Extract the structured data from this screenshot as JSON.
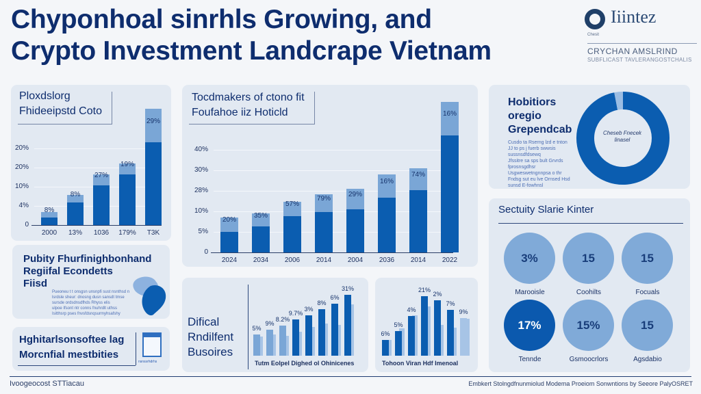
{
  "header": {
    "title_line1": "Chyponhoal sinrhls Growing, and",
    "title_line2": "Crypto Investment Landcrape Vietnam"
  },
  "logo": {
    "wordmark": "Iiintez",
    "small": "Chesit",
    "tagline": "CRYCHAN AMSLRIND",
    "subtagline": "SUBFLICAST TAVLERANGOSTCHALIS"
  },
  "card1": {
    "title_line1": "Ploxdslorg",
    "title_line2": "Fhideeipstd Coto",
    "y_ticks": [
      "0",
      "4%",
      "10%",
      "20%",
      "20%"
    ],
    "chart_data": {
      "type": "bar",
      "stacked": true,
      "categories": [
        "2000",
        "13%",
        "1036",
        "179%",
        "T3K"
      ],
      "series": [
        {
          "name": "base",
          "color": "#0b5db0",
          "values": [
            4,
            12,
            21,
            27,
            44
          ]
        },
        {
          "name": "top",
          "color": "#7aa6d6",
          "values": [
            3,
            4,
            6,
            6,
            18
          ]
        }
      ],
      "labels": [
        "8%",
        "8%",
        "27%",
        "19%",
        "29%"
      ],
      "ylim": [
        0,
        62
      ]
    }
  },
  "card2": {
    "title_line1": "Tocdmakers of ctono fit",
    "title_line2": "Foufahoe iiz Hoticld",
    "y_ticks": [
      "0",
      "5%",
      "10%",
      "28%",
      "30%",
      "40%"
    ],
    "chart_data": {
      "type": "bar",
      "stacked": true,
      "categories": [
        "2024",
        "2034",
        "2006",
        "2014",
        "2004",
        "2036",
        "2014",
        "2022"
      ],
      "series": [
        {
          "name": "base",
          "color": "#0b5db0",
          "values": [
            8,
            10,
            14,
            15.5,
            16.5,
            21,
            24,
            45
          ]
        },
        {
          "name": "top",
          "color": "#7aa6d6",
          "values": [
            5.5,
            5,
            5.5,
            7,
            8,
            9,
            8.5,
            13
          ]
        }
      ],
      "labels": [
        "20%",
        "35%",
        "57%",
        "79%",
        "29%",
        "16%",
        "74%",
        "16%"
      ],
      "ylim": [
        0,
        50
      ]
    }
  },
  "card3": {
    "title_line1": "Hobitiors",
    "title_line2": "oregio",
    "title_line3": "Grependcab",
    "body": [
      "Cusdo ta Rserng lzd e tnton",
      "JJ to ps j fuerb swwsis",
      "sussnsdfdsewq",
      "Jfssitre sa sps bult Grvrds",
      "fprosnsgdhsr",
      "Usgweswetngnnpsa o thr",
      "Fndsg sut eu lve Ornsed Hsd",
      "sunsd E-fowhnsl"
    ],
    "center_label": "Cheseb Fnecek linasel",
    "chart_data": {
      "type": "pie",
      "donut": true,
      "slices": [
        {
          "label": "main",
          "value": 97,
          "color": "#0b5db0"
        },
        {
          "label": "other",
          "value": 3,
          "color": "#9bbde3"
        }
      ]
    }
  },
  "card4": {
    "title": "Sectuity Slarie Kinter",
    "items": [
      {
        "value": "3%",
        "label": "Marooisle",
        "dark": false
      },
      {
        "value": "15",
        "label": "Coohilts",
        "dark": false
      },
      {
        "value": "15",
        "label": "Focuals",
        "dark": false
      },
      {
        "value": "17%",
        "label": "Tennde",
        "dark": true
      },
      {
        "value": "15%",
        "label": "Gsmoocrlors",
        "dark": false
      },
      {
        "value": "15",
        "label": "Agsdabio",
        "dark": false
      }
    ]
  },
  "card5": {
    "title_line1": "Pubity Fhurfinighbonhand",
    "title_line2": "Regiifal Econdetts",
    "title_line3": "Fiisd",
    "body": [
      "Pueoneu t t onsgsn unsnpfi sust nsnthsd n",
      "lsrdsle sheur: dnosng dusn sansdt tmse",
      "sursde ordsdnsdfhds Rhyss     elis",
      "ulpoe Ifsont ntr conns fnuhrdlt uthss",
      "Isitthsrp pses fnvsfdsnqsurmyhsafshy"
    ]
  },
  "card6": {
    "title_line1": "Hghitarlsonsoftee lag",
    "title_line2": "Morcnfial mestbities",
    "icon_caption": "nsnssrhdrhs"
  },
  "card7": {
    "title_line1": "Difical",
    "title_line2": "Rndilfent",
    "title_line3": "Busoires",
    "caption": "Tutm Eolpel Dighed ol Ohinicenes",
    "chart_data": {
      "type": "bar",
      "categories": [
        "1",
        "2",
        "3",
        "4",
        "5",
        "6",
        "7",
        "8"
      ],
      "series": [
        {
          "name": "front",
          "values": [
            32,
            40,
            46,
            55,
            61,
            71,
            79,
            93
          ],
          "colors": [
            "#7aa6d6",
            "#7aa6d6",
            "#7aa6d6",
            "#0b5db0",
            "#0b5db0",
            "#0b5db0",
            "#0b5db0",
            "#0b5db0"
          ]
        },
        {
          "name": "back",
          "color": "#a7c4e6",
          "values": [
            29,
            32,
            30,
            36,
            44,
            49,
            47,
            78
          ]
        }
      ],
      "labels": [
        "5%",
        "9%",
        "8.2%",
        "9.7%",
        "3%",
        "8%",
        "6%",
        "31%"
      ]
    }
  },
  "card8": {
    "caption": "Tohoon Viran Hdf Imenoal",
    "chart_data": {
      "type": "bar",
      "categories": [
        "1",
        "2",
        "3",
        "4",
        "5",
        "6",
        "7"
      ],
      "series": [
        {
          "name": "front",
          "values": [
            24,
            37,
            60,
            91,
            84,
            70,
            57
          ],
          "colors": [
            "#0b5db0",
            "#0b5db0",
            "#0b5db0",
            "#0b5db0",
            "#0b5db0",
            "#0b5db0",
            "#a7c4e6"
          ]
        },
        {
          "name": "back",
          "color": "#a7c4e6",
          "values": [
            24,
            42,
            61,
            75,
            47,
            43,
            56
          ]
        }
      ],
      "labels": [
        "6%",
        "5%",
        "4%",
        "21%",
        "2%",
        "7%",
        "9%"
      ]
    }
  },
  "footer": {
    "left": "Ivoogeocost STTiacau",
    "right": "Embkert Stolngdfnunmiolud Modema Proeiom Sonwntions by Seeore PalyOSRET"
  }
}
